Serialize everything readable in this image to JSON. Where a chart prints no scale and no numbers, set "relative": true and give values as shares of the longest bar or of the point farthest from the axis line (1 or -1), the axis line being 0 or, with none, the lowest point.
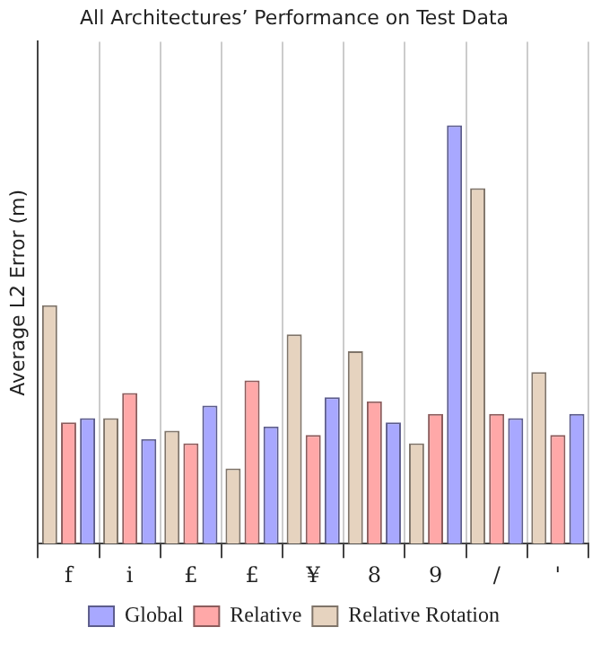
{
  "chart_data": {
    "type": "bar",
    "title": "All Architectures’ Performance on Test Data",
    "ylabel": "Average L2 Error (m)",
    "categories": [
      "f",
      "i",
      "£",
      "£",
      "¥",
      "8",
      "9",
      "/",
      "'"
    ],
    "series": [
      {
        "name": "Relative Rotation",
        "color": "#e6d3bf",
        "values": [
          0.57,
          0.3,
          0.27,
          0.18,
          0.5,
          0.46,
          0.24,
          0.85,
          0.41
        ]
      },
      {
        "name": "Relative",
        "color": "#ffa8a8",
        "values": [
          0.29,
          0.36,
          0.24,
          0.39,
          0.26,
          0.34,
          0.31,
          0.31,
          0.26
        ]
      },
      {
        "name": "Global",
        "color": "#a8a8ff",
        "values": [
          0.3,
          0.25,
          0.33,
          0.28,
          0.35,
          0.29,
          1,
          0.3,
          0.31
        ]
      }
    ],
    "relative": true,
    "grid": "x",
    "legend": "bottom"
  }
}
